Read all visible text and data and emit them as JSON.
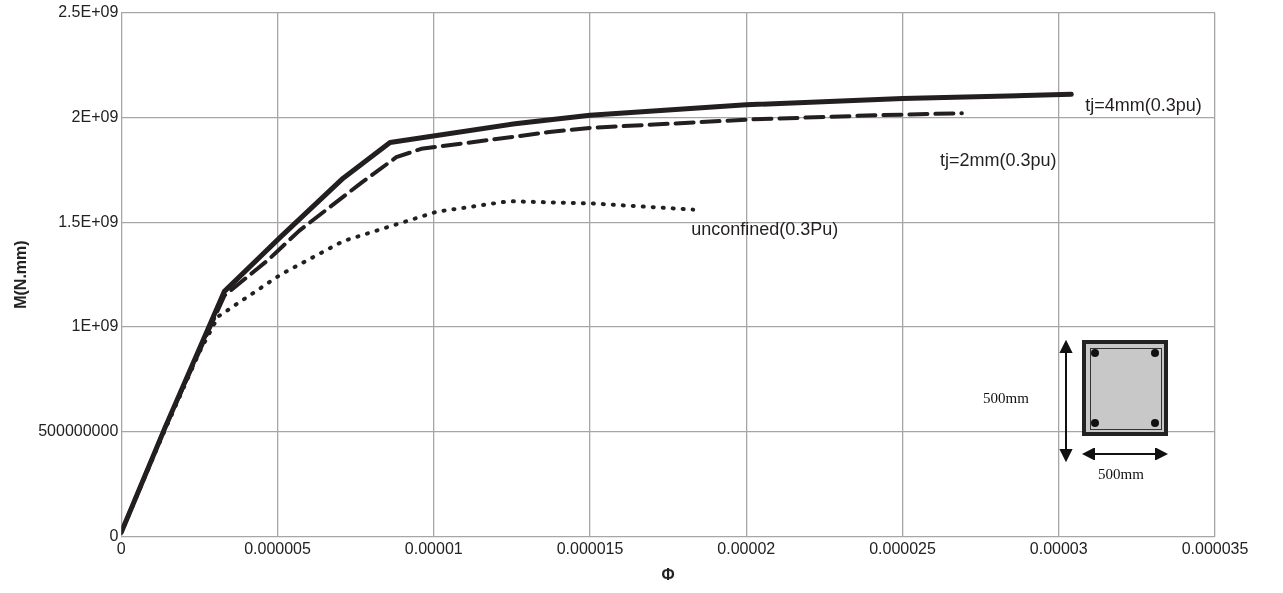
{
  "chart_data": {
    "type": "line",
    "xlabel": "Φ",
    "ylabel": "M(N.mm)",
    "xlim": [
      0,
      3.5e-05
    ],
    "ylim": [
      0,
      2500000000
    ],
    "xticks": [
      0,
      {
        "value": 5e-06,
        "label": "0.000005"
      },
      {
        "value": 1e-05,
        "label": "0.00001"
      },
      {
        "value": 1.5e-05,
        "label": "0.000015"
      },
      {
        "value": 2e-05,
        "label": "0.00002"
      },
      {
        "value": 2.5e-05,
        "label": "0.000025"
      },
      {
        "value": 3e-05,
        "label": "0.00003"
      },
      {
        "value": 3.5e-05,
        "label": "0.000035"
      }
    ],
    "yticks": [
      0,
      500000000,
      {
        "value": 1000000000,
        "label": "1E+09"
      },
      {
        "value": 1500000000,
        "label": "1.5E+09"
      },
      {
        "value": 2000000000,
        "label": "2E+09"
      },
      {
        "value": 2500000000,
        "label": "2.5E+09"
      }
    ],
    "grid": true,
    "legend": false,
    "marker": "none",
    "series": [
      {
        "name": "tj=4mm(0.3pu)",
        "color": "#231f20",
        "line_style": "solid",
        "x": [
          0,
          1.4e-06,
          3.3e-06,
          5.1e-06,
          7.1e-06,
          8.6e-06,
          1.26e-05,
          1.5e-05,
          2e-05,
          2.5e-05,
          3.04e-05
        ],
        "values": [
          20000000,
          520000000,
          1170000000,
          1430000000,
          1710000000,
          1880000000,
          1970000000,
          2010000000,
          2060000000,
          2090000000,
          2110000000
        ]
      },
      {
        "name": "tj=2mm(0.3pu)",
        "color": "#231f20",
        "line_style": "dashed",
        "x": [
          0,
          1.4e-06,
          3.3e-06,
          4.7e-06,
          5.7e-06,
          7.7e-06,
          8.8e-06,
          9.6e-06,
          1.37e-05,
          1.5e-05,
          2.01e-05,
          2.41e-05,
          2.69e-05
        ],
        "values": [
          20000000,
          520000000,
          1150000000,
          1320000000,
          1460000000,
          1690000000,
          1810000000,
          1850000000,
          1930000000,
          1950000000,
          1990000000,
          2010000000,
          2020000000
        ]
      },
      {
        "name": "unconfined(0.3Pu)",
        "color": "#231f20",
        "line_style": "dotted",
        "x": [
          0,
          1.4e-06,
          2.5e-06,
          3.1e-06,
          5.1e-06,
          7.1e-06,
          1.01e-05,
          1.24e-05,
          1.5e-05,
          1.83e-05
        ],
        "values": [
          20000000,
          510000000,
          880000000,
          1050000000,
          1250000000,
          1410000000,
          1550000000,
          1600000000,
          1590000000,
          1560000000
        ]
      }
    ],
    "annotations": [
      "500mm",
      "500mm"
    ]
  }
}
